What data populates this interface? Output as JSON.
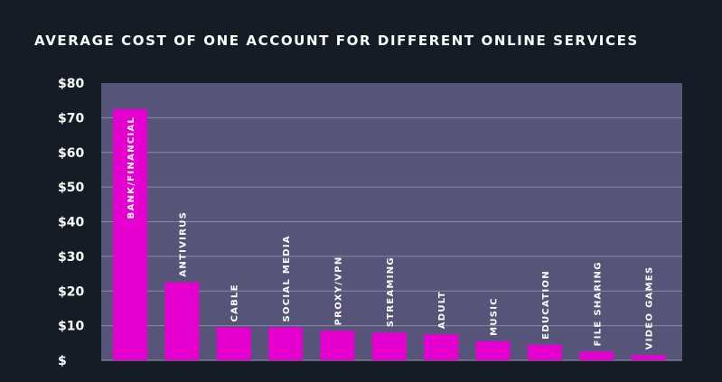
{
  "chart_data": {
    "type": "bar",
    "title": "AVERAGE COST OF ONE ACCOUNT FOR DIFFERENT ONLINE SERVICES",
    "categories": [
      "BANK/FINANCIAL",
      "ANTIVIRUS",
      "CABLE",
      "SOCIAL MEDIA",
      "PROXY/VPN",
      "STREAMING",
      "ADULT",
      "MUSIC",
      "EDUCATION",
      "FILE SHARING",
      "VIDEO GAMES"
    ],
    "values": [
      72.5,
      22.5,
      9.5,
      9.5,
      8.5,
      8,
      7.5,
      5.5,
      4.5,
      2.5,
      1.5
    ],
    "ylim": [
      0,
      80
    ],
    "yticks": [
      0,
      10,
      20,
      30,
      40,
      50,
      60,
      70,
      80
    ],
    "ytick_labels": [
      "$",
      "$10",
      "$20",
      "$30",
      "$40",
      "$50",
      "$60",
      "$70",
      "$80"
    ],
    "xlabel": "",
    "ylabel": "",
    "grid": true,
    "colors": {
      "background": "#161c26",
      "plot_area": "#565479",
      "bar": "#e600cf",
      "grid": "#8a89a6",
      "text": "#ffffff"
    }
  }
}
